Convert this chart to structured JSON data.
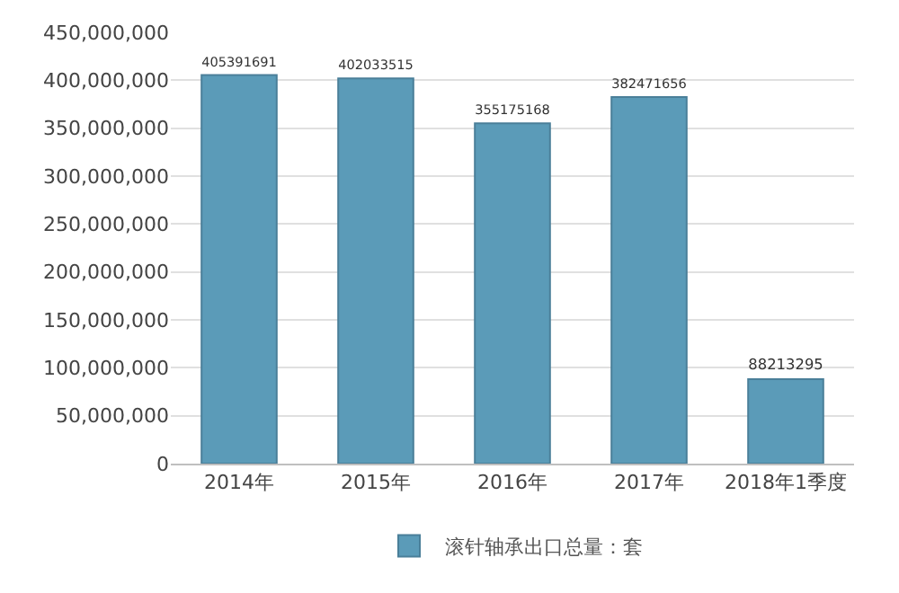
{
  "chart_data": {
    "type": "bar",
    "categories": [
      "2014年",
      "2015年",
      "2016年",
      "2017年",
      "2018年1季度"
    ],
    "series": [
      {
        "name": "滚针轴承出口总量：套",
        "color": "#5b9bb8",
        "values": [
          405391691,
          402033515,
          355175168,
          382471656,
          88213295
        ]
      }
    ],
    "ylim": [
      0,
      450000000
    ],
    "yticks": [
      {
        "value": 0,
        "label": "0"
      },
      {
        "value": 50000000,
        "label": "50,000,000"
      },
      {
        "value": 100000000,
        "label": "100,000,000"
      },
      {
        "value": 150000000,
        "label": "150,000,000"
      },
      {
        "value": 200000000,
        "label": "200,000,000"
      },
      {
        "value": 250000000,
        "label": "250,000,000"
      },
      {
        "value": 300000000,
        "label": "300,000,000"
      },
      {
        "value": 350000000,
        "label": "350,000,000"
      },
      {
        "value": 400000000,
        "label": "400,000,000"
      },
      {
        "value": 450000000,
        "label": "450,000,000"
      }
    ],
    "grid": "y",
    "legend": "bottom",
    "data_labels": true
  }
}
